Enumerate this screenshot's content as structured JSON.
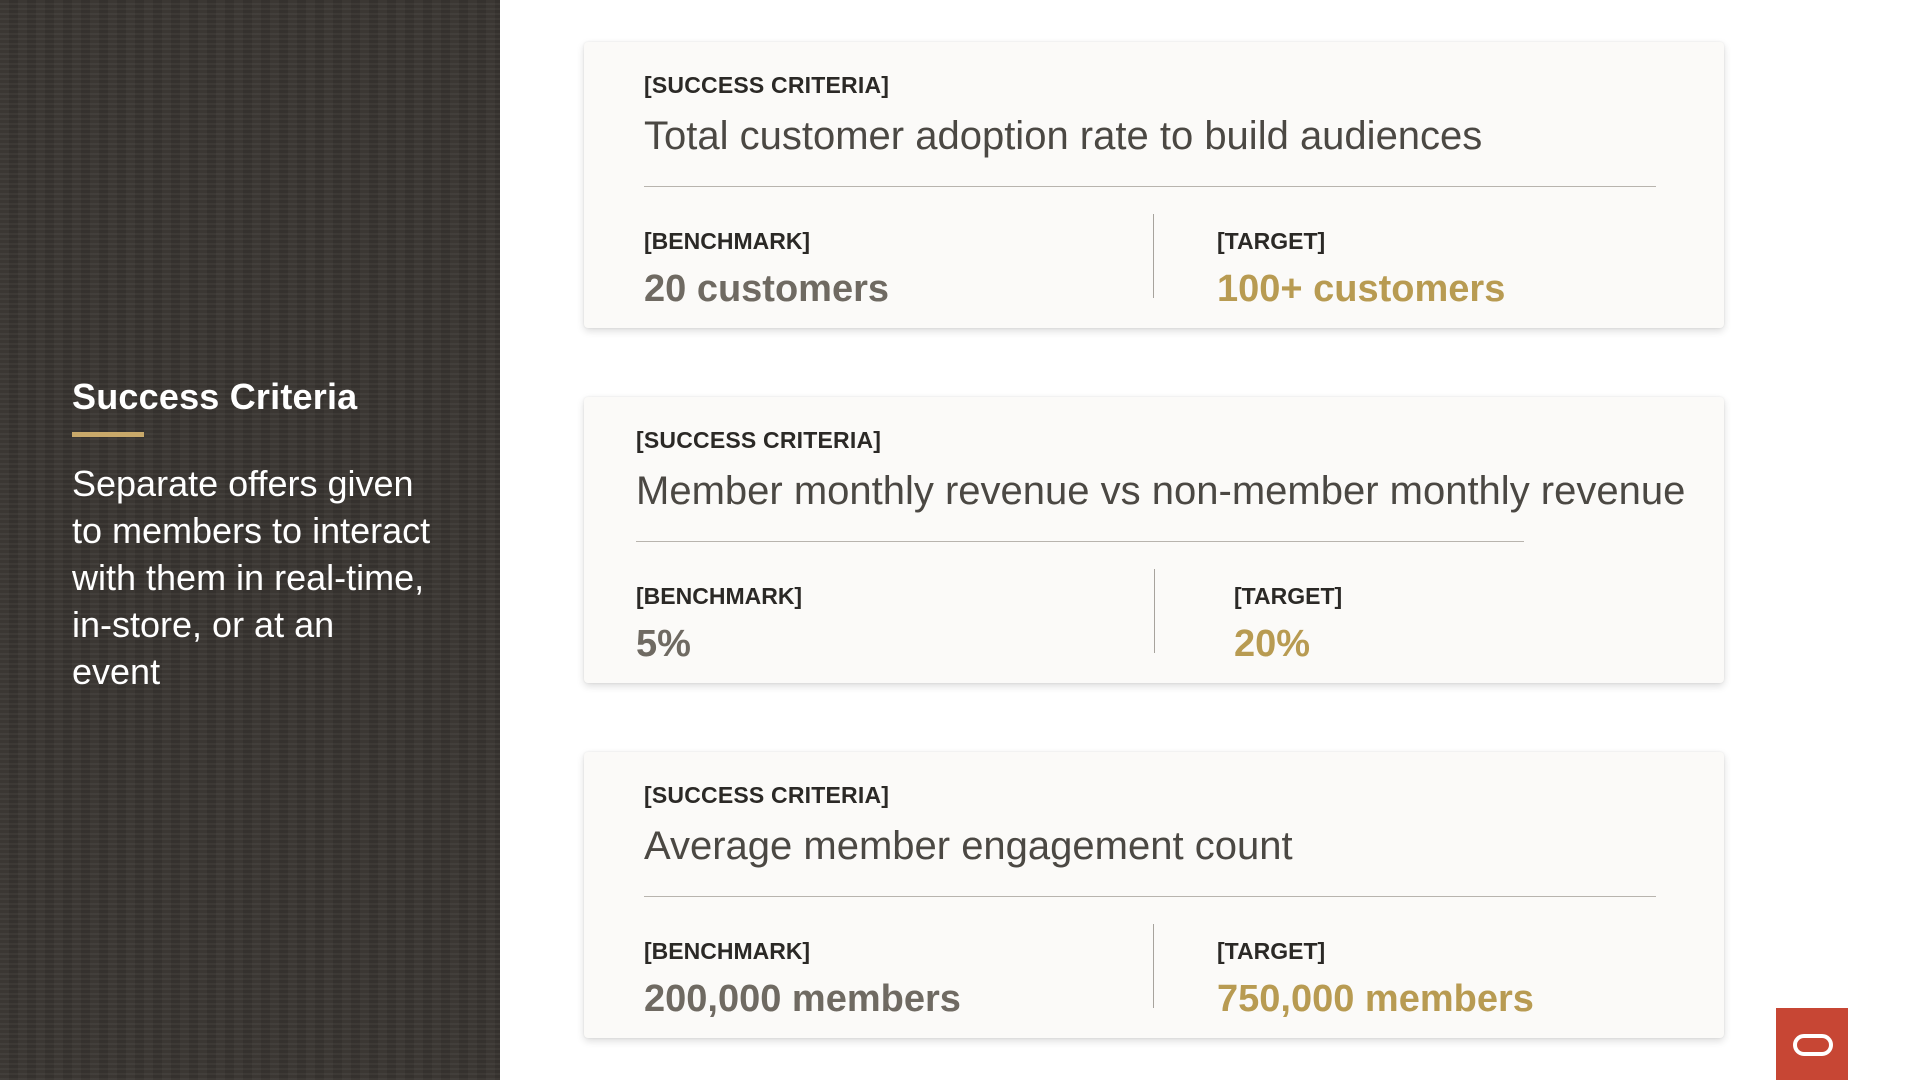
{
  "sidebar": {
    "title": "Success Criteria",
    "description": "Separate offers given to members to interact with them in real-time, in-store, or at an event",
    "accent_color": "#c9a96a"
  },
  "cards": [
    {
      "kicker": "[SUCCESS CRITERIA]",
      "headline": "Total customer adoption rate to build audiences",
      "benchmark_label": "[BENCHMARK]",
      "benchmark_value": "20 customers",
      "target_label": "[TARGET]",
      "target_value": "100+ customers"
    },
    {
      "kicker": "[SUCCESS CRITERIA]",
      "headline": "Member monthly revenue vs non-member monthly revenue",
      "benchmark_label": "[BENCHMARK]",
      "benchmark_value": "5%",
      "target_label": "[TARGET]",
      "target_value": "20%"
    },
    {
      "kicker": "[SUCCESS CRITERIA]",
      "headline": "Average member engagement count",
      "benchmark_label": "[BENCHMARK]",
      "benchmark_value": "200,000 members",
      "target_label": "[TARGET]",
      "target_value": "750,000 members"
    }
  ],
  "colors": {
    "benchmark_value": "#6f6a62",
    "target_value": "#b89b52",
    "logo_background": "#c74634"
  },
  "logo": {
    "icon": "oracle-logo-icon"
  }
}
